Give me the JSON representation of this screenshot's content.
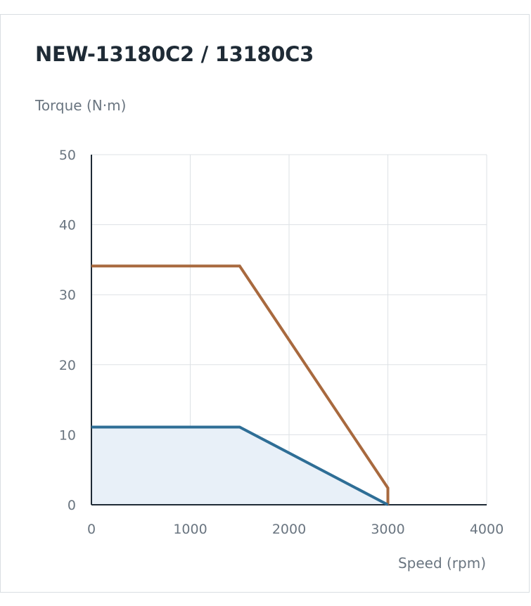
{
  "chart_data": {
    "type": "line",
    "title": "NEW-13180C2 / 13180C3",
    "ylabel": "Torque (N·m)",
    "xlabel": "Speed (rpm)",
    "xlim": [
      0,
      4000
    ],
    "ylim": [
      0,
      50
    ],
    "x_ticks": [
      "0",
      "1000",
      "2000",
      "3000",
      "4000"
    ],
    "y_ticks": [
      "0",
      "10",
      "20",
      "30",
      "40",
      "50"
    ],
    "grid": true,
    "series": [
      {
        "x": [
          0,
          1500,
          3000,
          3000
        ],
        "y": [
          34.1,
          34.1,
          2.4,
          0
        ],
        "color": "#a8693e",
        "fill": false
      },
      {
        "x": [
          0,
          1500,
          3000
        ],
        "y": [
          11.1,
          11.1,
          0
        ],
        "color": "#2e6e96",
        "fill": true,
        "fill_color": "#e8f0f8"
      }
    ]
  }
}
